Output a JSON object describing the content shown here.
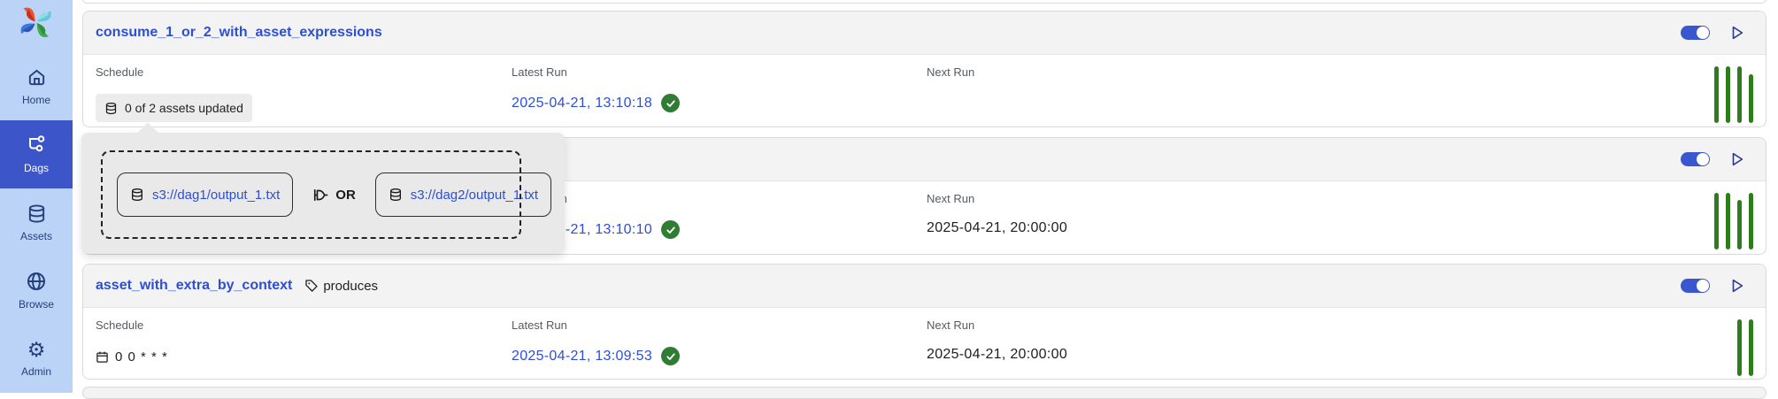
{
  "app": {
    "name": "Airflow"
  },
  "sidebar": {
    "items": [
      {
        "label": "Home",
        "icon": "home-icon",
        "active": false
      },
      {
        "label": "Dags",
        "icon": "dags-icon",
        "active": true
      },
      {
        "label": "Assets",
        "icon": "assets-icon",
        "active": false
      },
      {
        "label": "Browse",
        "icon": "browse-icon",
        "active": false
      },
      {
        "label": "Admin",
        "icon": "admin-icon",
        "active": false
      }
    ]
  },
  "columns": {
    "schedule": "Schedule",
    "latest_run": "Latest Run",
    "next_run": "Next Run"
  },
  "popover": {
    "operator_label": "OR",
    "assets": [
      "s3://dag1/output_1.txt",
      "s3://dag2/output_1.txt"
    ]
  },
  "dags": [
    {
      "name": "consume_1_or_2_with_asset_expressions",
      "schedule": "0 of 2 assets updated",
      "latest_run": "2025-04-21, 13:10:18",
      "latest_run_status": "success",
      "next_run": "",
      "enabled": true,
      "run_bars": [
        0,
        0,
        0,
        9
      ]
    },
    {
      "name": "",
      "schedule": "",
      "latest_run": "2025-04-21, 13:10:10",
      "latest_run_status": "success",
      "next_run": "2025-04-21, 20:00:00",
      "enabled": true,
      "run_bars": [
        0,
        0,
        8,
        0
      ]
    },
    {
      "name": "asset_with_extra_by_context",
      "tag": "produces",
      "schedule": "0 0 * * *",
      "latest_run": "2025-04-21, 13:09:53",
      "latest_run_status": "success",
      "next_run": "2025-04-21, 20:00:00",
      "enabled": true,
      "run_bars": [
        0,
        0
      ]
    }
  ],
  "colors": {
    "link_blue": "#2d4ed6",
    "toggle_blue": "#3b57d0",
    "sidebar_bg": "#bcd3f8",
    "sidebar_active": "#3c56c9",
    "bar_green": "#2e7d1d",
    "check_green": "#2e7d32"
  }
}
